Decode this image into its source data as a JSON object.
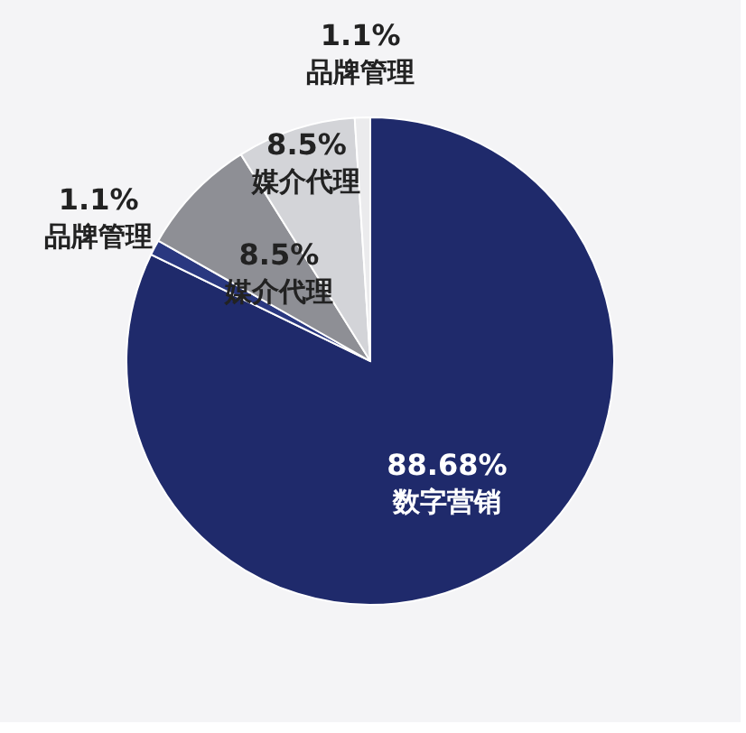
{
  "chart_data": {
    "type": "pie",
    "categories": [
      "数字营销",
      "品牌管理",
      "媒介代理",
      "媒介代理",
      "品牌管理"
    ],
    "values": [
      88.68,
      1.1,
      8.5,
      8.5,
      1.1
    ],
    "value_labels": [
      "88.68%",
      "1.1%",
      "8.5%",
      "8.5%",
      "1.1%"
    ],
    "colors": [
      "#1f2a6b",
      "#2a3880",
      "#8e8f95",
      "#d3d4d8",
      "#ebebed"
    ],
    "legend": false
  }
}
